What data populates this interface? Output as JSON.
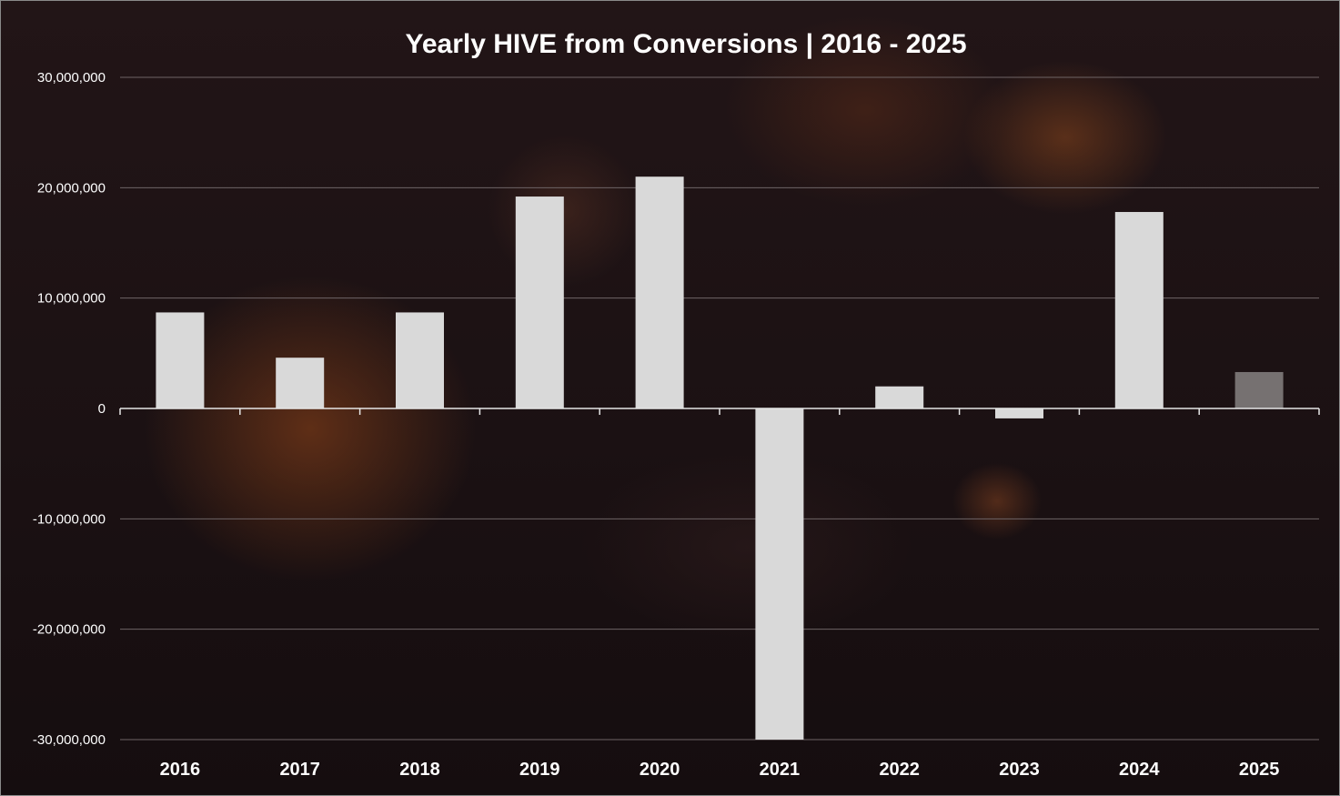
{
  "chart_data": {
    "type": "bar",
    "title": "Yearly HIVE from Conversions | 2016 - 2025",
    "xlabel": "",
    "ylabel": "",
    "categories": [
      "2016",
      "2017",
      "2018",
      "2019",
      "2020",
      "2021",
      "2022",
      "2023",
      "2024",
      "2025"
    ],
    "values": [
      8700000,
      4600000,
      8700000,
      19200000,
      21000000,
      -30000000,
      2000000,
      -900000,
      17800000,
      3300000
    ],
    "ylim": [
      -30000000,
      30000000
    ],
    "yticks": [
      30000000,
      20000000,
      10000000,
      0,
      -10000000,
      -20000000,
      -30000000
    ],
    "ytick_labels": [
      "30,000,000",
      "20,000,000",
      "10,000,000",
      "0",
      "-10,000,000",
      "-20,000,000",
      "-30,000,000"
    ],
    "grid": true,
    "legend": "none",
    "colors": {
      "bar": "#d9d9d9",
      "bar_highlight": "#767171",
      "text": "#ffffff",
      "gridline": "#6e6466"
    },
    "highlighted_category": "2025"
  }
}
